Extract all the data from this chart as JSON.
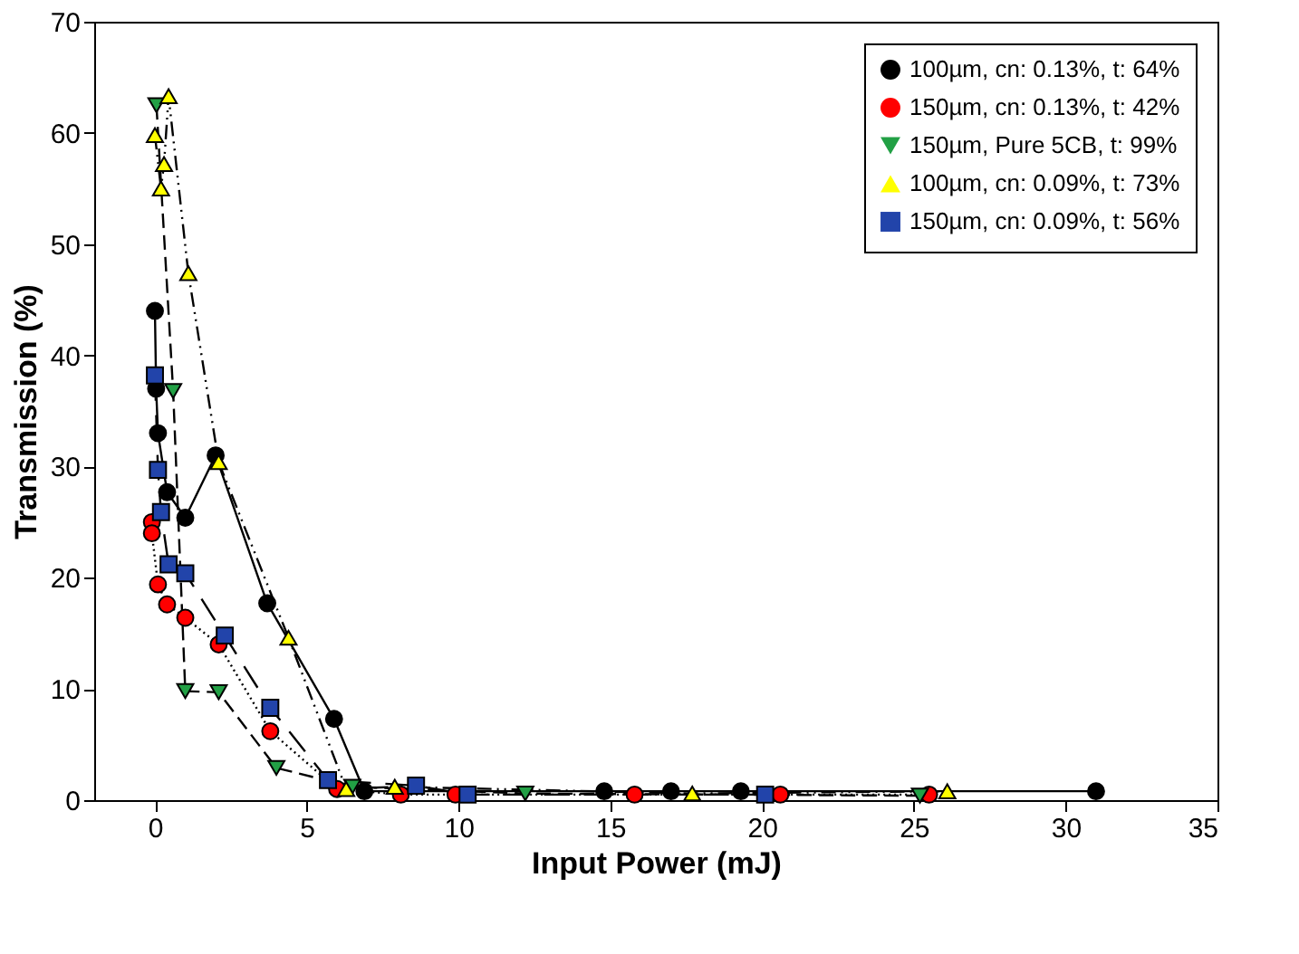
{
  "chart_data": {
    "type": "line",
    "xlabel": "Input Power (mJ)",
    "ylabel": "Transmission (%)",
    "xlim": [
      -2,
      35
    ],
    "xticks": [
      0,
      5,
      10,
      15,
      20,
      25,
      30,
      35
    ],
    "ylim": [
      0,
      70
    ],
    "yticks": [
      0,
      10,
      20,
      30,
      40,
      50,
      60,
      70
    ],
    "grid": false,
    "legend": "top right",
    "series": [
      {
        "name": "100µm, cn: 0.13%, t: 64%",
        "color": "#000000",
        "marker": "circle",
        "line_style": "solid",
        "x": [
          0,
          0.04,
          0.1,
          0.4,
          1.0,
          2.0,
          3.7,
          5.9,
          6.9,
          14.8,
          17.0,
          19.3,
          31.0
        ],
        "values": [
          44,
          37,
          33,
          27.7,
          25.4,
          31,
          17.7,
          7.3,
          0.8,
          0.8,
          0.8,
          0.8,
          0.8
        ]
      },
      {
        "name": "150µm, cn: 0.13%, t: 42%",
        "color": "#ff0000",
        "marker": "circle",
        "line_style": "dotted",
        "x": [
          -0.1,
          -0.1,
          0.1,
          0.4,
          1.0,
          2.1,
          3.8,
          6.0,
          8.1,
          9.9,
          15.8,
          20.6,
          25.5
        ],
        "values": [
          25,
          24,
          19.4,
          17.6,
          16.4,
          14,
          6.2,
          1,
          0.5,
          0.5,
          0.5,
          0.5,
          0.5
        ]
      },
      {
        "name": "150µm, Pure 5CB, t: 99%",
        "color": "#22a045",
        "marker": "triangle-down",
        "line_style": "dashed",
        "x": [
          0.05,
          0.6,
          1.0,
          2.1,
          4.0,
          6.5,
          12.2,
          25.2
        ],
        "values": [
          62.5,
          36.8,
          9.8,
          9.7,
          2.9,
          1.2,
          0.6,
          0.4
        ]
      },
      {
        "name": "100µm, cn: 0.09%, t: 73%",
        "color": "#ffff00",
        "marker": "triangle-up",
        "line_style": "dashdotdot",
        "x": [
          0,
          0.2,
          0.3,
          0.45,
          1.1,
          2.1,
          4.4,
          6.3,
          7.9,
          17.7,
          26.1
        ],
        "values": [
          59.8,
          55,
          57.2,
          63.3,
          47.4,
          30.4,
          14.6,
          1,
          1.2,
          0.6,
          0.8
        ]
      },
      {
        "name": "150µm, cn: 0.09%, t: 56%",
        "color": "#2244aa",
        "marker": "square",
        "line_style": "longdash",
        "x": [
          0,
          0.1,
          0.2,
          0.45,
          1.0,
          2.3,
          3.8,
          5.7,
          8.6,
          10.3,
          20.1
        ],
        "values": [
          38.2,
          29.7,
          25.9,
          21.2,
          20.4,
          14.8,
          8.3,
          1.8,
          1.3,
          0.5,
          0.5
        ]
      }
    ]
  }
}
